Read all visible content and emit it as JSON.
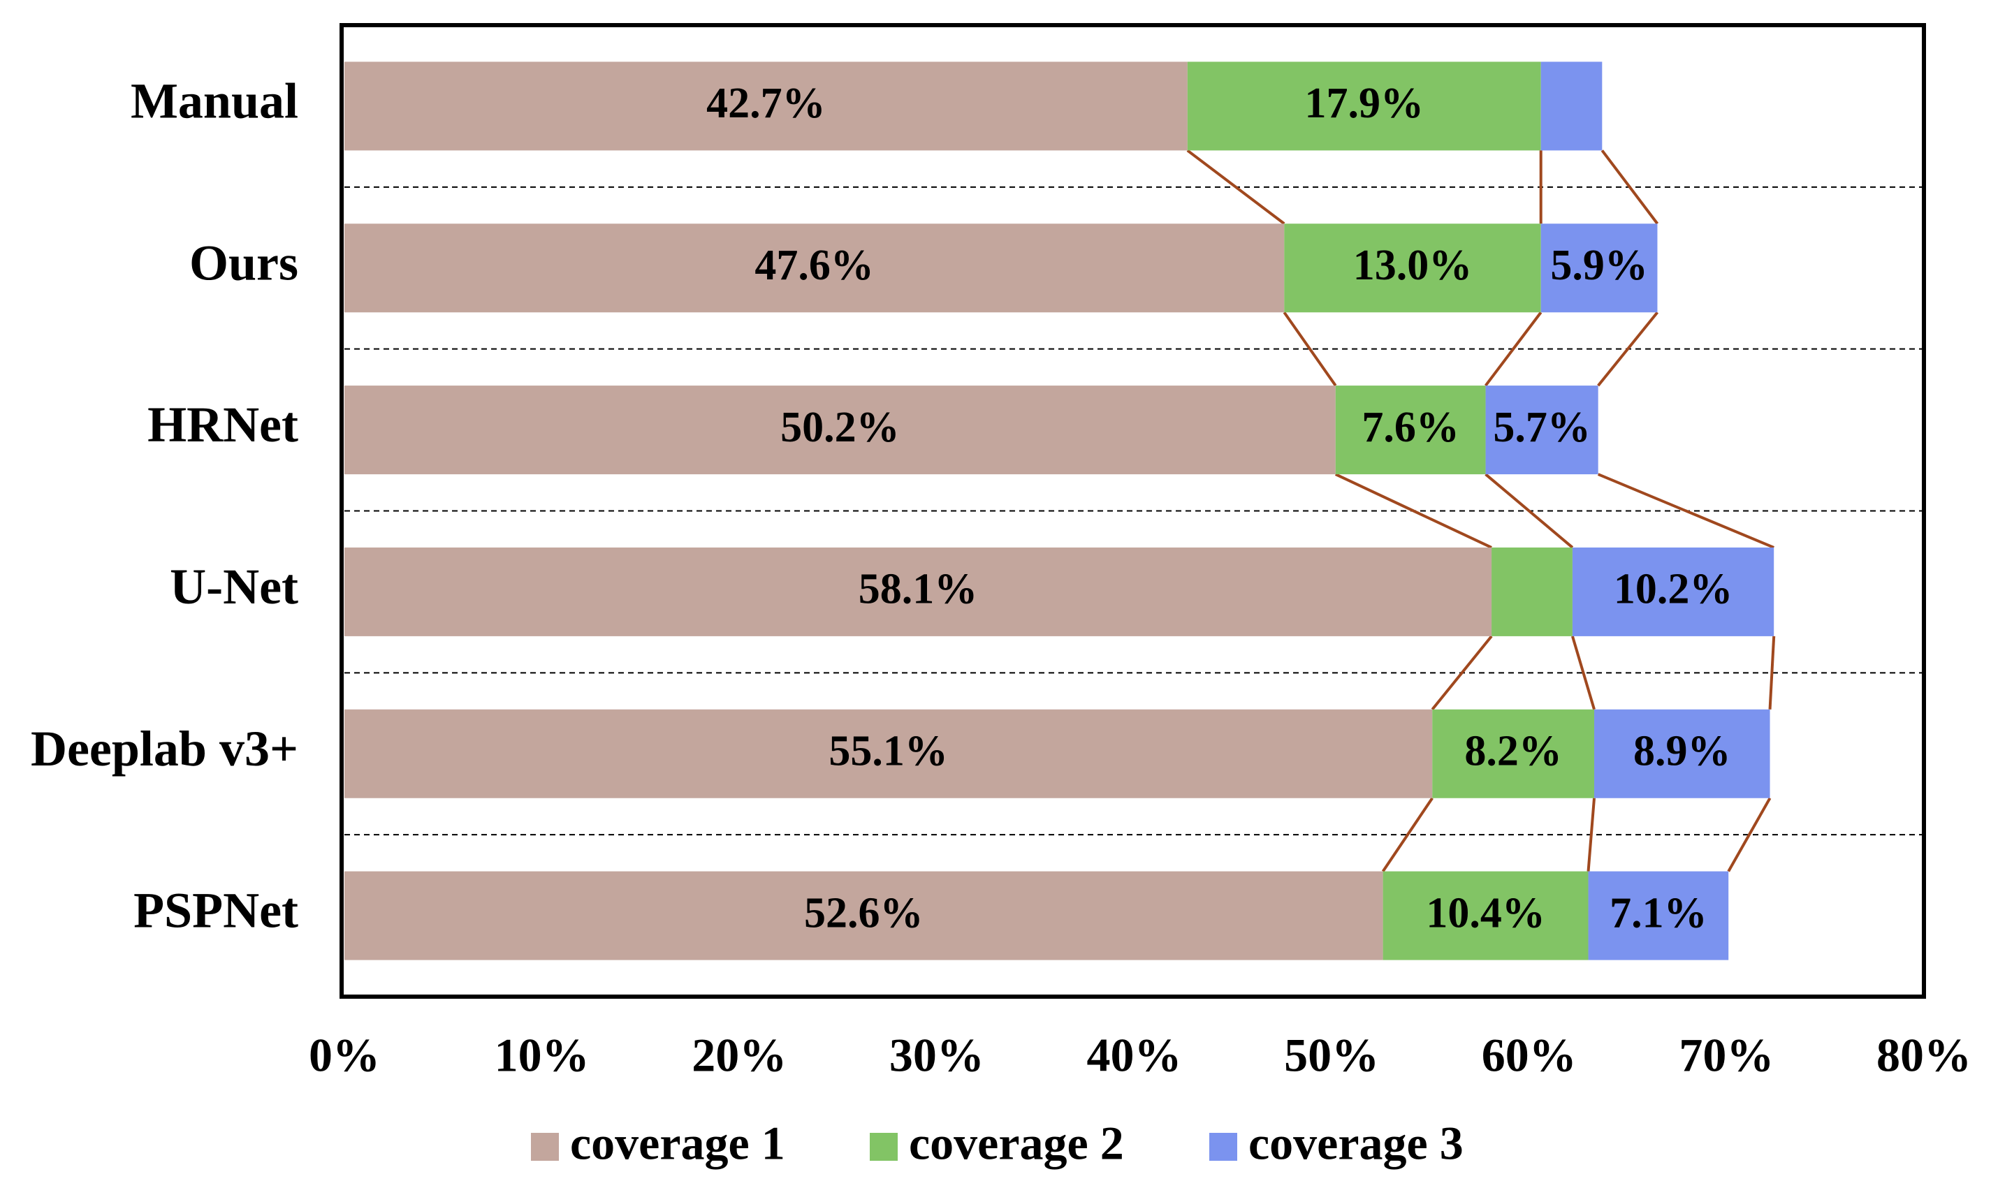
{
  "chart_data": {
    "type": "stacked-barh",
    "categories": [
      "Manual",
      "Ours",
      "HRNet",
      "U-Net",
      "Deeplab v3+",
      "PSPNet"
    ],
    "series": [
      {
        "name": "coverage 1",
        "color": "#c3a69d",
        "values": [
          42.7,
          47.6,
          50.2,
          58.1,
          55.1,
          52.6
        ],
        "value_labels": [
          "42.7%",
          "47.6%",
          "50.2%",
          "58.1%",
          "55.1%",
          "52.6%"
        ]
      },
      {
        "name": "coverage 2",
        "color": "#82c465",
        "values": [
          17.9,
          13.0,
          7.6,
          4.1,
          8.2,
          10.4
        ],
        "value_labels": [
          "17.9%",
          "13.0%",
          "7.6%",
          null,
          "8.2%",
          "10.4%"
        ]
      },
      {
        "name": "coverage 3",
        "color": "#7b93ef",
        "values": [
          3.1,
          5.9,
          5.7,
          10.2,
          8.9,
          7.1
        ],
        "value_labels": [
          null,
          "5.9%",
          "5.7%",
          "10.2%",
          "8.9%",
          "7.1%"
        ]
      }
    ],
    "xlim": [
      0,
      80
    ],
    "xticks": [
      {
        "value": 0,
        "label": "0%"
      },
      {
        "value": 10,
        "label": "10%"
      },
      {
        "value": 20,
        "label": "20%"
      },
      {
        "value": 30,
        "label": "30%"
      },
      {
        "value": 40,
        "label": "40%"
      },
      {
        "value": 50,
        "label": "50%"
      },
      {
        "value": 60,
        "label": "60%"
      },
      {
        "value": 70,
        "label": "70%"
      },
      {
        "value": 80,
        "label": "80%"
      }
    ],
    "connector_color": "#a0481e",
    "row_separators": "dashed"
  }
}
